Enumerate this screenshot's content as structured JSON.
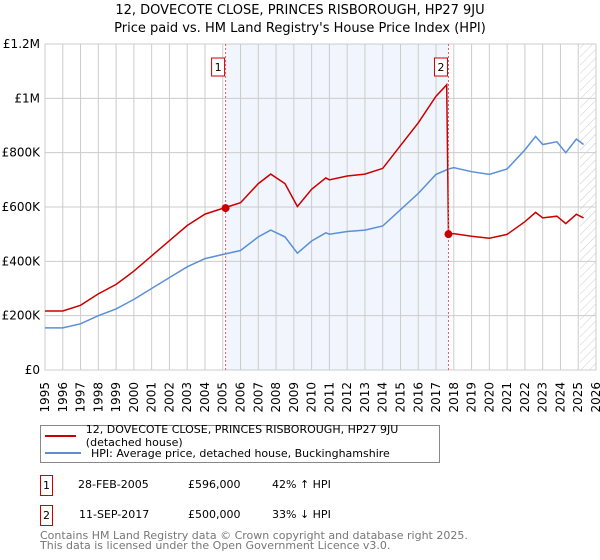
{
  "title_line1": "12, DOVECOTE CLOSE, PRINCES RISBOROUGH, HP27 9JU",
  "title_line2": "Price paid vs. HM Land Registry's House Price Index (HPI)",
  "chart_data": {
    "type": "line",
    "title": "12, DOVECOTE CLOSE, PRINCES RISBOROUGH, HP27 9JU — Price paid vs. HM Land Registry's House Price Index (HPI)",
    "xlim": [
      1995,
      2026
    ],
    "ylim": [
      0,
      1200000
    ],
    "grid": true,
    "legend_placement": "below",
    "y_ticks": [
      {
        "v": 0,
        "label": "£0"
      },
      {
        "v": 200000,
        "label": "£200K"
      },
      {
        "v": 400000,
        "label": "£400K"
      },
      {
        "v": 600000,
        "label": "£600K"
      },
      {
        "v": 800000,
        "label": "£800K"
      },
      {
        "v": 1000000,
        "label": "£1M"
      },
      {
        "v": 1200000,
        "label": "£1.2M"
      }
    ],
    "x_ticks": [
      "1995",
      "1996",
      "1997",
      "1998",
      "1999",
      "2000",
      "2001",
      "2002",
      "2003",
      "2004",
      "2005",
      "2006",
      "2007",
      "2008",
      "2009",
      "2010",
      "2011",
      "2012",
      "2013",
      "2014",
      "2015",
      "2016",
      "2017",
      "2018",
      "2019",
      "2020",
      "2021",
      "2022",
      "2023",
      "2024",
      "2025",
      "2026"
    ],
    "shaded_period": [
      2005.16,
      2017.7
    ],
    "forecast_hatch_from": 2025.1,
    "series": [
      {
        "name": "12, DOVECOTE CLOSE, PRINCES RISBOROUGH, HP27 9JU (detached house)",
        "color": "#cc0000",
        "x": [
          1995,
          1996,
          1997,
          1998,
          1999,
          2000,
          2001,
          2002,
          2003,
          2004,
          2005,
          2006,
          2007,
          2007.7,
          2008.5,
          2009.2,
          2010,
          2010.8,
          2011,
          2012,
          2013,
          2014,
          2015,
          2016,
          2017,
          2017.6,
          2017.7,
          2018,
          2019,
          2020,
          2021,
          2022,
          2022.6,
          2023,
          2023.8,
          2024.3,
          2024.9,
          2025.3
        ],
        "y": [
          217000,
          217000,
          238000,
          280000,
          315000,
          364000,
          420000,
          476000,
          532000,
          574000,
          595000,
          616000,
          686000,
          721000,
          686000,
          602000,
          665000,
          707000,
          700000,
          714000,
          721000,
          742000,
          826000,
          910000,
          1008000,
          1050000,
          500000,
          502000,
          492000,
          485000,
          499000,
          546000,
          580000,
          560000,
          566000,
          539000,
          573000,
          560000
        ]
      },
      {
        "name": "HPI: Average price, detached house, Buckinghamshire",
        "color": "#5b8fd6",
        "x": [
          1995,
          1996,
          1997,
          1998,
          1999,
          2000,
          2001,
          2002,
          2003,
          2004,
          2005,
          2006,
          2007,
          2007.7,
          2008.5,
          2009.2,
          2010,
          2010.8,
          2011,
          2012,
          2013,
          2014,
          2015,
          2016,
          2017,
          2017.7,
          2018,
          2019,
          2020,
          2021,
          2022,
          2022.6,
          2023,
          2023.8,
          2024.3,
          2024.9,
          2025.3
        ],
        "y": [
          155000,
          155000,
          170000,
          200000,
          225000,
          260000,
          300000,
          340000,
          380000,
          410000,
          425000,
          440000,
          490000,
          515000,
          490000,
          430000,
          475000,
          505000,
          500000,
          510000,
          515000,
          530000,
          590000,
          650000,
          720000,
          740000,
          745000,
          730000,
          720000,
          740000,
          810000,
          860000,
          830000,
          840000,
          800000,
          850000,
          830000
        ]
      }
    ],
    "annotations": [
      {
        "label": "1",
        "x": 2005.16,
        "y": 596000
      },
      {
        "label": "2",
        "x": 2017.7,
        "y": 500000
      }
    ]
  },
  "legend": {
    "red_label": "12, DOVECOTE CLOSE, PRINCES RISBOROUGH, HP27 9JU (detached house)",
    "blue_label": "HPI: Average price, detached house, Buckinghamshire"
  },
  "transactions": [
    {
      "num": "1",
      "date": "28-FEB-2005",
      "price": "£596,000",
      "hpi": "42% ↑ HPI"
    },
    {
      "num": "2",
      "date": "11-SEP-2017",
      "price": "£500,000",
      "hpi": "33% ↓ HPI"
    }
  ],
  "footer_line1": "Contains HM Land Registry data © Crown copyright and database right 2025.",
  "footer_line2": "This data is licensed under the Open Government Licence v3.0."
}
